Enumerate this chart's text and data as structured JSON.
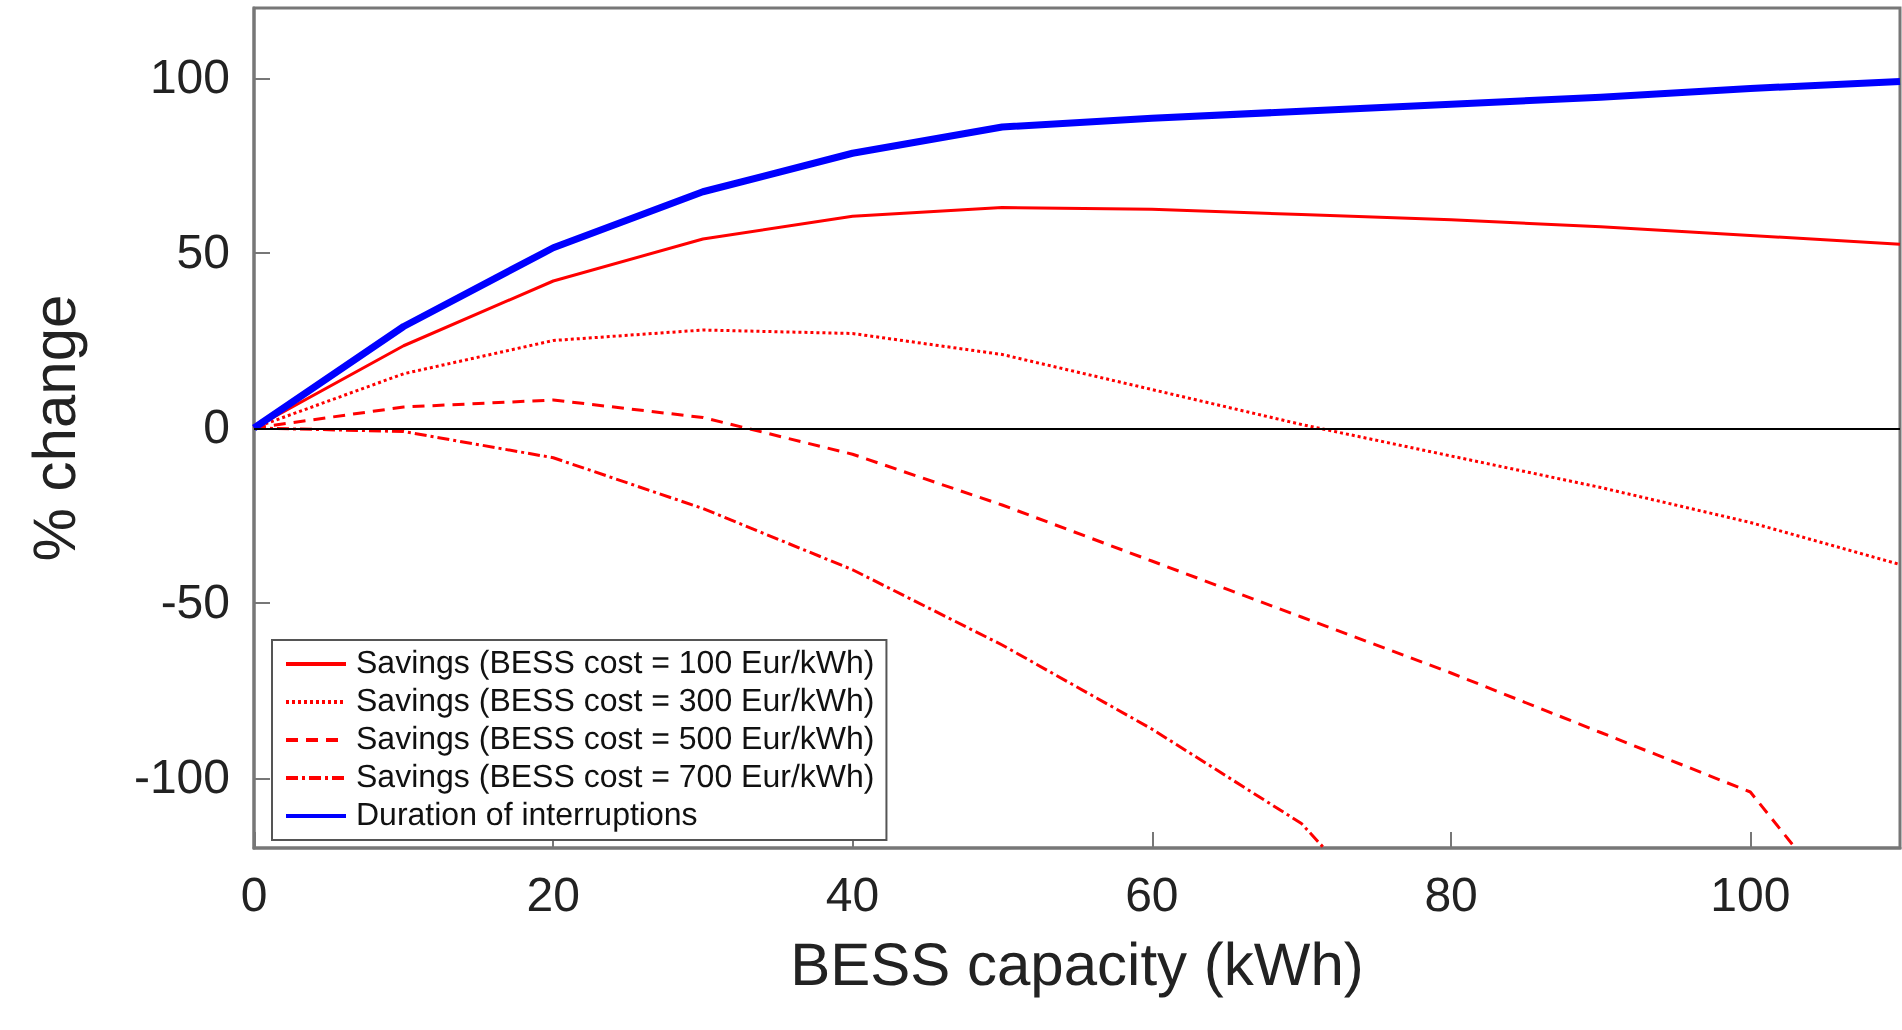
{
  "chart_data": {
    "type": "line",
    "xlabel": "BESS capacity (kWh)",
    "ylabel": "% change",
    "xlim": [
      0,
      110
    ],
    "xticks": [
      0,
      20,
      40,
      60,
      80,
      100
    ],
    "ylim": [
      -120,
      120
    ],
    "yticks": [
      -100,
      -50,
      0,
      50,
      100
    ],
    "grid": false,
    "legend": "bottom left",
    "marker": "none",
    "ref_lines": [
      {
        "axis": "y",
        "value": 0,
        "color": "#000000"
      }
    ],
    "series": [
      {
        "name": "Savings (BESS cost = 100 Eur/kWh)",
        "color": "#ff0000",
        "line_style": "solid",
        "x": [
          0,
          10,
          20,
          30,
          40,
          50,
          60,
          70,
          80,
          90,
          100,
          110
        ],
        "values": [
          0,
          23.5,
          42,
          54,
          60.5,
          63,
          62.5,
          61,
          59.5,
          57.5,
          55,
          52.5
        ]
      },
      {
        "name": "Savings (BESS cost = 300 Eur/kWh)",
        "color": "#ff0000",
        "line_style": "dotted",
        "x": [
          0,
          10,
          20,
          30,
          40,
          50,
          60,
          70,
          80,
          90,
          100,
          110
        ],
        "values": [
          0,
          15.5,
          25,
          28,
          27,
          21,
          11,
          1,
          -8,
          -17,
          -27,
          -39
        ]
      },
      {
        "name": "Savings (BESS cost = 500 Eur/kWh)",
        "color": "#ff0000",
        "line_style": "dashed",
        "x": [
          0,
          10,
          20,
          30,
          40,
          50,
          60,
          70,
          80,
          90,
          100,
          103
        ],
        "values": [
          0,
          6,
          8,
          3,
          -7.5,
          -22,
          -38,
          -54,
          -70,
          -87,
          -104,
          -120
        ]
      },
      {
        "name": "Savings (BESS cost = 700 Eur/kWh)",
        "color": "#ff0000",
        "line_style": "dashdot",
        "x": [
          0,
          10,
          20,
          30,
          40,
          50,
          60,
          70,
          71.5
        ],
        "values": [
          0,
          -1,
          -8.5,
          -23,
          -40.5,
          -62,
          -86,
          -113,
          -120
        ]
      },
      {
        "name": "Duration of interruptions",
        "color": "#0000ff",
        "line_style": "solid",
        "x": [
          0,
          10,
          20,
          30,
          40,
          50,
          60,
          70,
          80,
          90,
          100,
          110
        ],
        "values": [
          0,
          29,
          51.5,
          67.5,
          78.5,
          86,
          88.5,
          90.5,
          92.5,
          94.5,
          97,
          99
        ]
      }
    ]
  }
}
